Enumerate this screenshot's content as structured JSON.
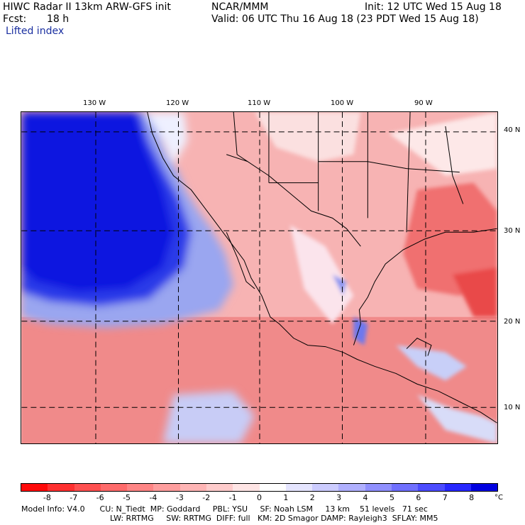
{
  "header": {
    "title": "HIWC Radar II 13km ARW-GFS init",
    "org": "NCAR/MMM",
    "init": "Init: 12 UTC Wed 15 Aug 18",
    "fcst_label": "Fcst:",
    "fcst_value": "18 h",
    "valid": "Valid: 06 UTC Thu 16 Aug 18 (23 PDT Wed 15 Aug 18)",
    "field": "Lifted index"
  },
  "map": {
    "lon_labels": [
      "130 W",
      "120 W",
      "110 W",
      "100 W",
      "90 W"
    ],
    "lat_labels": [
      "40 N",
      "30 N",
      "20 N",
      "10 N"
    ],
    "ocean_color": "#1020e0",
    "land_color": "#f6a0a0"
  },
  "colorbar": {
    "ticks": [
      "-8",
      "-7",
      "-6",
      "-5",
      "-4",
      "-3",
      "-2",
      "-1",
      "0",
      "1",
      "2",
      "3",
      "4",
      "5",
      "6",
      "7",
      "8"
    ],
    "unit": "°C",
    "colors": [
      "#ff0a0a",
      "#ff3030",
      "#ff5050",
      "#ff6b6b",
      "#ff8585",
      "#ff9e9e",
      "#ffb5b5",
      "#ffcccc",
      "#ffe5e5",
      "#ffffff",
      "#e5e5ff",
      "#ccccff",
      "#b0b0ff",
      "#9090ff",
      "#7070ff",
      "#4c4cff",
      "#2828ff",
      "#0000e0"
    ]
  },
  "model_info": {
    "line1": "Model Info: V4.0      CU: N_Tiedt  MP: Goddard     PBL: YSU     SF: Noah LSM     13 km    51 levels   71 sec",
    "line2": "LW: RRTMG     SW: RRTMG  DIFF: full   KM: 2D Smagor DAMP: Rayleigh3  SFLAY: MM5"
  }
}
